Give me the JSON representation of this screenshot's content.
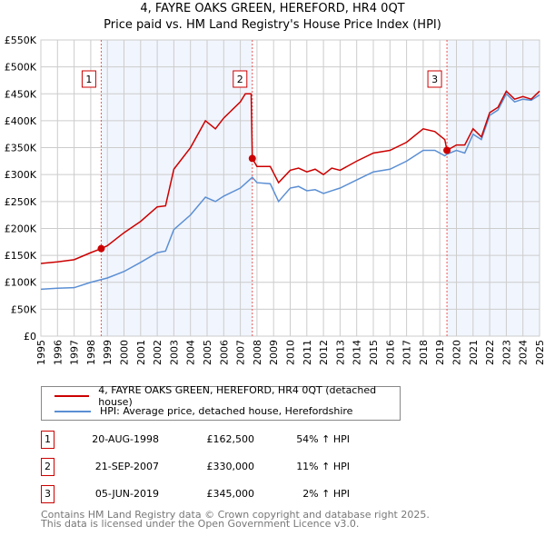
{
  "chart_data": {
    "type": "line",
    "title": "4, FAYRE OAKS GREEN, HEREFORD, HR4 0QT",
    "subtitle": "Price paid vs. HM Land Registry's House Price Index (HPI)",
    "xlim": [
      1995,
      2025
    ],
    "ylim": [
      0,
      550000
    ],
    "x_ticks": [
      "1995",
      "1996",
      "1997",
      "1998",
      "1999",
      "2000",
      "2001",
      "2002",
      "2003",
      "2004",
      "2005",
      "2006",
      "2007",
      "2008",
      "2009",
      "2010",
      "2011",
      "2012",
      "2013",
      "2014",
      "2015",
      "2016",
      "2017",
      "2018",
      "2019",
      "2020",
      "2021",
      "2022",
      "2023",
      "2024",
      "2025"
    ],
    "y_ticks": [
      {
        "v": 0,
        "label": "£0"
      },
      {
        "v": 50000,
        "label": "£50K"
      },
      {
        "v": 100000,
        "label": "£100K"
      },
      {
        "v": 150000,
        "label": "£150K"
      },
      {
        "v": 200000,
        "label": "£200K"
      },
      {
        "v": 250000,
        "label": "£250K"
      },
      {
        "v": 300000,
        "label": "£300K"
      },
      {
        "v": 350000,
        "label": "£350K"
      },
      {
        "v": 400000,
        "label": "£400K"
      },
      {
        "v": 450000,
        "label": "£450K"
      },
      {
        "v": 500000,
        "label": "£500K"
      },
      {
        "v": 550000,
        "label": "£550K"
      }
    ],
    "grid": true,
    "shaded_ranges": [
      [
        1998.63,
        2007.72
      ],
      [
        2019.43,
        2025
      ]
    ],
    "series": [
      {
        "name": "4, FAYRE OAKS GREEN, HEREFORD, HR4 0QT (detached house)",
        "color": "#cc0000",
        "x": [
          1995,
          1996,
          1997,
          1998,
          1998.63,
          1999,
          2000,
          2001,
          2002,
          2002.5,
          2003,
          2004,
          2004.9,
          2005.5,
          2006,
          2007,
          2007.3,
          2007.65,
          2007.72,
          2008,
          2008.8,
          2009.3,
          2010,
          2010.5,
          2011,
          2011.5,
          2012,
          2012.5,
          2013,
          2014,
          2015,
          2016,
          2017,
          2018,
          2018.7,
          2019.3,
          2019.43,
          2020,
          2020.5,
          2021,
          2021.5,
          2022,
          2022.5,
          2023,
          2023.5,
          2024,
          2024.5,
          2025
        ],
        "y": [
          135000,
          138000,
          142000,
          155000,
          162500,
          168000,
          192000,
          213000,
          240000,
          242000,
          310000,
          350000,
          400000,
          385000,
          405000,
          435000,
          450000,
          450000,
          330000,
          315000,
          315000,
          285000,
          308000,
          312000,
          305000,
          310000,
          300000,
          312000,
          308000,
          325000,
          340000,
          345000,
          360000,
          385000,
          380000,
          365000,
          345000,
          355000,
          355000,
          385000,
          370000,
          415000,
          425000,
          455000,
          440000,
          445000,
          440000,
          455000
        ]
      },
      {
        "name": "HPI: Average price, detached house, Herefordshire",
        "color": "#5b8fd4",
        "x": [
          1995,
          1996,
          1997,
          1998,
          1998.63,
          1999,
          2000,
          2001,
          2002,
          2002.5,
          2003,
          2004,
          2004.9,
          2005.5,
          2006,
          2007,
          2007.72,
          2008,
          2008.8,
          2009.3,
          2010,
          2010.5,
          2011,
          2011.5,
          2012,
          2012.5,
          2013,
          2014,
          2015,
          2016,
          2017,
          2018,
          2018.7,
          2019.3,
          2019.43,
          2020,
          2020.5,
          2021,
          2021.5,
          2022,
          2022.5,
          2023,
          2023.5,
          2024,
          2024.5,
          2025
        ],
        "y": [
          87000,
          89000,
          90000,
          100000,
          105000,
          108000,
          120000,
          137000,
          155000,
          158000,
          198000,
          225000,
          258000,
          250000,
          260000,
          275000,
          295000,
          285000,
          283000,
          250000,
          275000,
          278000,
          270000,
          272000,
          265000,
          270000,
          275000,
          290000,
          305000,
          310000,
          325000,
          345000,
          345000,
          335000,
          338000,
          345000,
          340000,
          375000,
          365000,
          410000,
          420000,
          450000,
          435000,
          440000,
          438000,
          448000
        ]
      }
    ],
    "sales": [
      {
        "label": "1",
        "x": 1998.63,
        "y": 162500
      },
      {
        "label": "2",
        "x": 2007.72,
        "y": 330000
      },
      {
        "label": "3",
        "x": 2019.43,
        "y": 345000
      }
    ],
    "legend_position": "bottom"
  },
  "table": [
    {
      "num": "1",
      "date": "20-AUG-1998",
      "price": "£162,500",
      "hpi": "54% ↑ HPI"
    },
    {
      "num": "2",
      "date": "21-SEP-2007",
      "price": "£330,000",
      "hpi": "11% ↑ HPI"
    },
    {
      "num": "3",
      "date": "05-JUN-2019",
      "price": "£345,000",
      "hpi": "2% ↑ HPI"
    }
  ],
  "footer": {
    "line1": "Contains HM Land Registry data © Crown copyright and database right 2025.",
    "line2": "This data is licensed under the Open Government Licence v3.0."
  }
}
